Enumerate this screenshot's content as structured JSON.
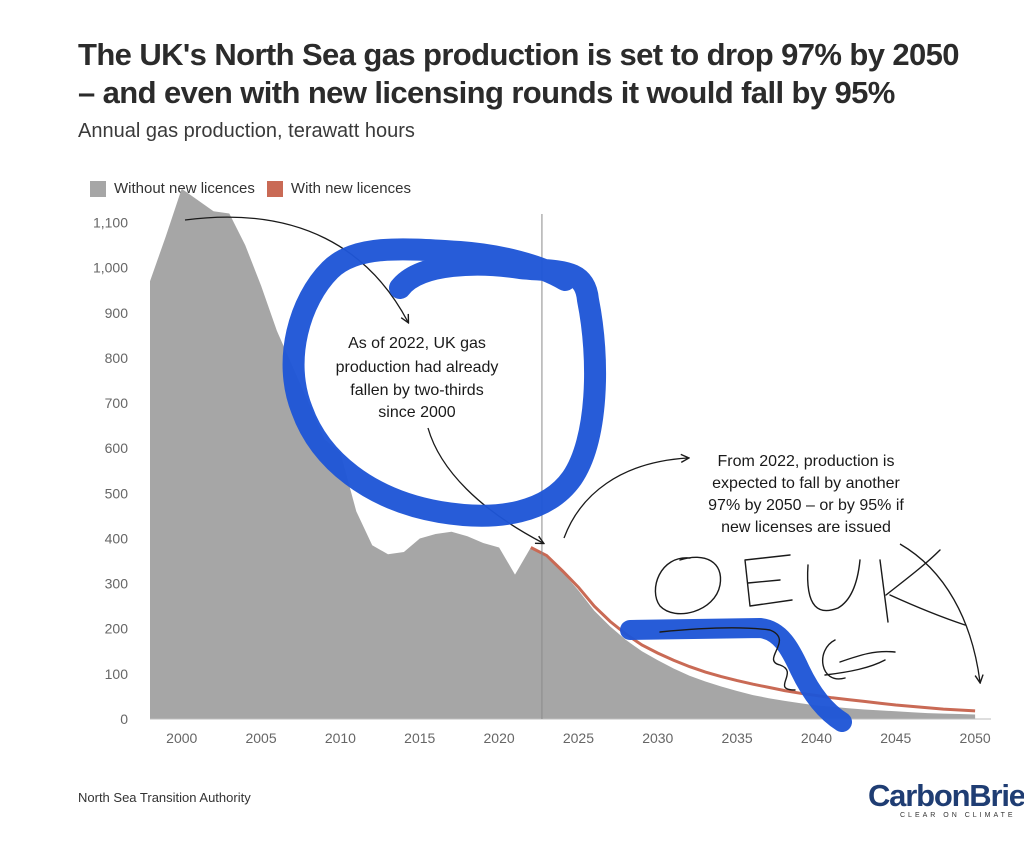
{
  "header": {
    "title_line1": "The UK's North Sea gas production is set to drop 97% by 2050",
    "title_line2": "– and even with new licensing rounds it would fall by 95%",
    "subtitle": "Annual gas production, terawatt hours"
  },
  "legend": [
    {
      "label": "Without new licences",
      "color": "#a6a6a6"
    },
    {
      "label": "With new licences",
      "color": "#c96a55"
    }
  ],
  "chart_data": {
    "type": "area",
    "title": "The UK's North Sea gas production is set to drop 97% by 2050 – and even with new licensing rounds it would fall by 95%",
    "ylabel": "Annual gas production, terawatt hours",
    "xlim": [
      1998,
      2051
    ],
    "ylim": [
      0,
      1150
    ],
    "x_ticks": [
      2000,
      2005,
      2010,
      2015,
      2020,
      2025,
      2030,
      2035,
      2040,
      2045,
      2050
    ],
    "y_ticks": [
      0,
      100,
      200,
      300,
      400,
      500,
      600,
      700,
      800,
      900,
      1000,
      1100
    ],
    "reference_line_x": 2022.7,
    "series": [
      {
        "name": "Without new licences",
        "color": "#a6a6a6",
        "x": [
          1998,
          1999,
          2000,
          2001,
          2002,
          2003,
          2004,
          2005,
          2006,
          2007,
          2008,
          2009,
          2010,
          2011,
          2012,
          2013,
          2014,
          2015,
          2016,
          2017,
          2018,
          2019,
          2020,
          2021,
          2022,
          2023,
          2024,
          2025,
          2026,
          2027,
          2028,
          2029,
          2030,
          2031,
          2032,
          2033,
          2034,
          2035,
          2036,
          2037,
          2038,
          2039,
          2040,
          2041,
          2042,
          2043,
          2044,
          2045,
          2046,
          2047,
          2048,
          2049,
          2050
        ],
        "values": [
          970,
          1070,
          1175,
          1150,
          1125,
          1120,
          1050,
          960,
          860,
          780,
          700,
          620,
          590,
          460,
          385,
          365,
          370,
          400,
          410,
          415,
          405,
          390,
          380,
          320,
          380,
          362,
          325,
          285,
          240,
          205,
          175,
          150,
          130,
          112,
          96,
          83,
          72,
          62,
          53,
          46,
          40,
          35,
          30,
          27,
          24,
          21,
          19,
          17,
          15,
          13,
          12,
          11,
          10
        ]
      },
      {
        "name": "With new licences",
        "color": "#c96a55",
        "x": [
          2022,
          2023,
          2024,
          2025,
          2026,
          2027,
          2028,
          2029,
          2030,
          2031,
          2032,
          2033,
          2034,
          2035,
          2036,
          2037,
          2038,
          2039,
          2040,
          2041,
          2042,
          2043,
          2044,
          2045,
          2046,
          2047,
          2048,
          2049,
          2050
        ],
        "values": [
          380,
          362,
          328,
          292,
          250,
          216,
          188,
          164,
          146,
          130,
          116,
          104,
          94,
          85,
          77,
          70,
          63,
          57,
          52,
          47,
          43,
          39,
          35,
          31,
          28,
          25,
          22,
          20,
          18
        ]
      }
    ],
    "annotations": [
      {
        "lines": [
          "As of 2022, UK gas",
          "production had already",
          "fallen by two-thirds",
          "since 2000"
        ]
      },
      {
        "lines": [
          "From 2022, production is",
          "expected to fall by another",
          "97% by 2050 – or by 95% if",
          "new licenses are issued"
        ]
      }
    ]
  },
  "footer": {
    "source": "North Sea Transition Authority",
    "logo_text": "CarbonBrief",
    "logo_tagline": "CLEAR ON CLIMATE"
  },
  "handwriting": {
    "letters": "OEUK",
    "marker_color": "#1e55d6"
  }
}
